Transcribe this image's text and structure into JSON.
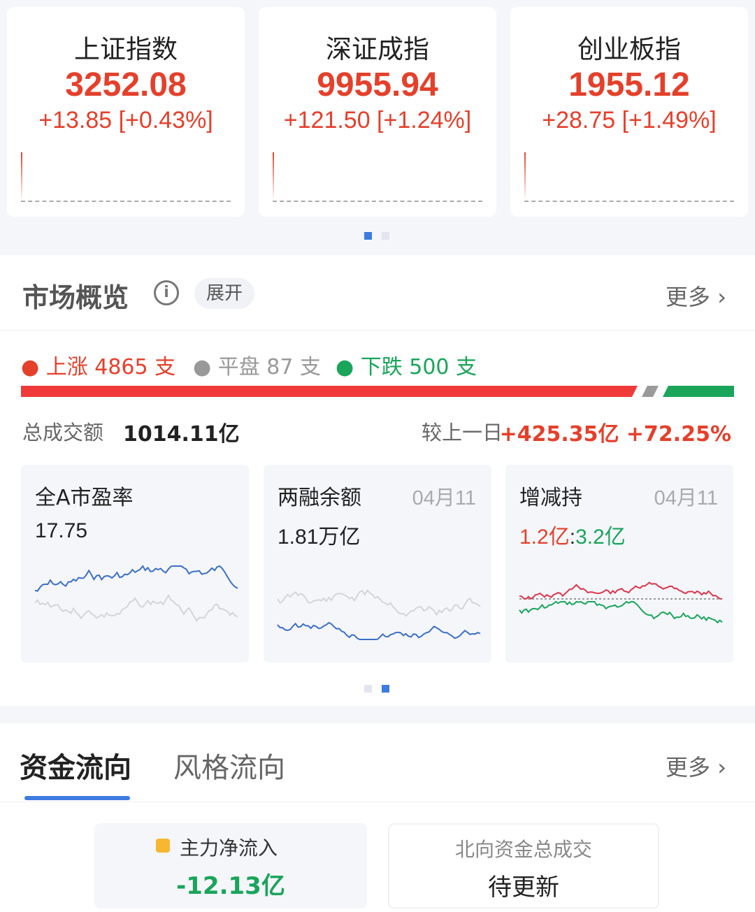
{
  "indices": [
    {
      "name": "上证指数",
      "value": "3252.08",
      "change": "+13.85 [+0.43%]"
    },
    {
      "name": "深证成指",
      "value": "9955.94",
      "change": "+121.50 [+1.24%]"
    },
    {
      "name": "创业板指",
      "value": "1955.12",
      "change": "+28.75 [+1.49%]"
    }
  ],
  "overview": {
    "title": "市场概览",
    "expand": "展开",
    "more": "更多",
    "up": "上涨 4865 支",
    "flat": "平盘 87 支",
    "down": "下跌 500 支",
    "breadth": {
      "up": 4865,
      "flat": 87,
      "down": 500
    },
    "total_label": "总成交额",
    "total_value": "1014.11亿",
    "compare_label": "较上一日",
    "compare_value": "+425.35亿 +72.25%",
    "cards": [
      {
        "name": "全A市盈率",
        "date": "",
        "value": "17.75"
      },
      {
        "name": "两融余额",
        "date": "04月11",
        "value": "1.81万亿"
      },
      {
        "name": "增减持",
        "date": "04月11",
        "value_up": "1.2亿",
        "sep": ":",
        "value_down": "3.2亿"
      }
    ]
  },
  "flow": {
    "tabs": [
      "资金流向",
      "风格流向"
    ],
    "more": "更多",
    "main_label": "主力净流入",
    "main_value": "-12.13亿",
    "north_label": "北向资金总成交",
    "north_value": "待更新"
  },
  "colors": {
    "up": "#e4402b",
    "down": "#1aa55a",
    "accent": "#3d7be0",
    "flat": "#9a9a9a"
  }
}
